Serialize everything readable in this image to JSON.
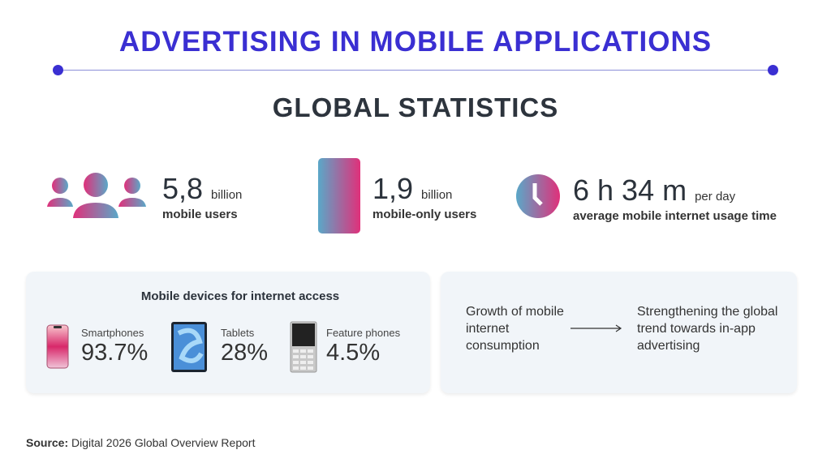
{
  "title": "ADVERTISING IN MOBILE APPLICATIONS",
  "subtitle": "GLOBAL STATISTICS",
  "colors": {
    "accent": "#3a2fd2",
    "gradient_pink": "#e0307a",
    "gradient_blue": "#5aa8c8",
    "card_bg": "#f1f5f9"
  },
  "stats": [
    {
      "icon": "users-icon",
      "value": "5,8",
      "unit": "billion",
      "label": "mobile users"
    },
    {
      "icon": "phone-icon",
      "value": "1,9",
      "unit": "billion",
      "label": "mobile-only users"
    },
    {
      "icon": "clock-icon",
      "value": "6 h 34 m",
      "unit": "per day",
      "label": "average mobile internet usage time"
    }
  ],
  "devices": {
    "heading": "Mobile devices for internet access",
    "items": [
      {
        "icon": "smartphone-icon",
        "name": "Smartphones",
        "value": "93.7%"
      },
      {
        "icon": "tablet-icon",
        "name": "Tablets",
        "value": "28%"
      },
      {
        "icon": "feature-phone-icon",
        "name": "Feature phones",
        "value": "4.5%"
      }
    ]
  },
  "flow": {
    "from": "Growth of mobile internet consumption",
    "to": "Strengthening the global trend towards in-app advertising"
  },
  "source": {
    "label": "Source:",
    "text": "Digital 2026 Global Overview Report"
  }
}
